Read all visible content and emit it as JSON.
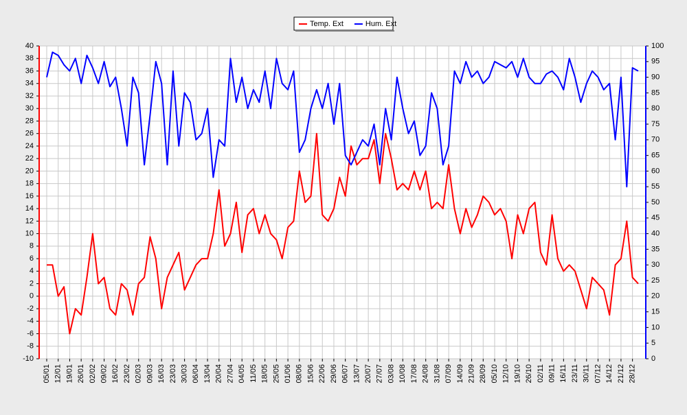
{
  "chart_data": {
    "type": "line",
    "categories": [
      "05/01",
      null,
      "12/01",
      null,
      "19/01",
      null,
      "26/01",
      null,
      "02/02",
      null,
      "09/02",
      null,
      "16/02",
      null,
      "23/02",
      null,
      "02/03",
      null,
      "09/03",
      null,
      "16/03",
      null,
      "23/03",
      null,
      "30/03",
      null,
      "06/04",
      null,
      "13/04",
      null,
      "20/04",
      null,
      "27/04",
      null,
      "04/05",
      null,
      "11/05",
      null,
      "18/05",
      null,
      "25/05",
      null,
      "01/06",
      null,
      "08/06",
      null,
      "15/06",
      null,
      "22/06",
      null,
      "29/06",
      null,
      "06/07",
      null,
      "13/07",
      null,
      "20/07",
      null,
      "27/07",
      null,
      "03/08",
      null,
      "10/08",
      null,
      "17/08",
      null,
      "24/08",
      null,
      "31/08",
      null,
      "07/09",
      null,
      "14/09",
      null,
      "21/09",
      null,
      "28/09",
      null,
      "05/10",
      null,
      "12/10",
      null,
      "19/10",
      null,
      "26/10",
      null,
      "02/11",
      null,
      "09/11",
      null,
      "16/11",
      null,
      "23/11",
      null,
      "30/11",
      null,
      "07/12",
      null,
      "14/12",
      null,
      "21/12",
      null,
      "28/12",
      null
    ],
    "series": [
      {
        "name": "Temp. Ext",
        "color": "#ff0000",
        "axis": "y",
        "values": [
          5,
          5,
          0,
          1.5,
          -6,
          -2,
          -3,
          3,
          10,
          2,
          3,
          -2,
          -3,
          2,
          1,
          -3,
          2,
          3,
          9.5,
          6,
          -2,
          3,
          5,
          7,
          1,
          3,
          5,
          6,
          6,
          10,
          17,
          8,
          10,
          15,
          7,
          13,
          14,
          10,
          13,
          10,
          9,
          6,
          11,
          12,
          20,
          15,
          16,
          26,
          13,
          12,
          14,
          19,
          16,
          24,
          21,
          22,
          22,
          25,
          18,
          26,
          22,
          17,
          18,
          17,
          20,
          17,
          20,
          14,
          15,
          14,
          21,
          14,
          10,
          14,
          11,
          13,
          16,
          15,
          13,
          14,
          12,
          6,
          13,
          10,
          14,
          15,
          7,
          5,
          13,
          6,
          4,
          5,
          4,
          1,
          -2,
          3,
          2,
          1,
          -3,
          5,
          6,
          12,
          3,
          2
        ]
      },
      {
        "name": "Hum. Ext",
        "color": "#0000ff",
        "axis": "y2",
        "values": [
          90,
          98,
          97,
          94,
          92,
          96,
          88,
          97,
          93,
          88,
          95,
          87,
          90,
          80,
          68,
          90,
          85,
          62,
          78,
          95,
          88,
          62,
          92,
          68,
          85,
          82,
          70,
          72,
          80,
          58,
          70,
          68,
          96,
          82,
          90,
          80,
          86,
          82,
          92,
          80,
          96,
          88,
          86,
          92,
          66,
          70,
          80,
          86,
          80,
          88,
          75,
          88,
          65,
          62,
          66,
          70,
          68,
          75,
          62,
          80,
          70,
          90,
          80,
          72,
          76,
          65,
          68,
          85,
          80,
          62,
          68,
          92,
          88,
          95,
          90,
          92,
          88,
          90,
          95,
          94,
          93,
          95,
          90,
          96,
          90,
          88,
          88,
          91,
          92,
          90,
          86,
          96,
          90,
          82,
          88,
          92,
          90,
          86,
          88,
          70,
          90,
          55,
          93,
          92
        ]
      }
    ],
    "ylim": [
      -10,
      40
    ],
    "yticks": [
      -10,
      -8,
      -6,
      -4,
      -2,
      0,
      2,
      4,
      6,
      8,
      10,
      12,
      14,
      16,
      18,
      20,
      22,
      24,
      26,
      28,
      30,
      32,
      34,
      36,
      38,
      40
    ],
    "y2lim": [
      0,
      100
    ],
    "y2ticks": [
      0,
      5,
      10,
      15,
      20,
      25,
      30,
      35,
      40,
      45,
      50,
      55,
      60,
      65,
      70,
      75,
      80,
      85,
      90,
      95,
      100
    ],
    "grid": true,
    "legend": "top"
  }
}
